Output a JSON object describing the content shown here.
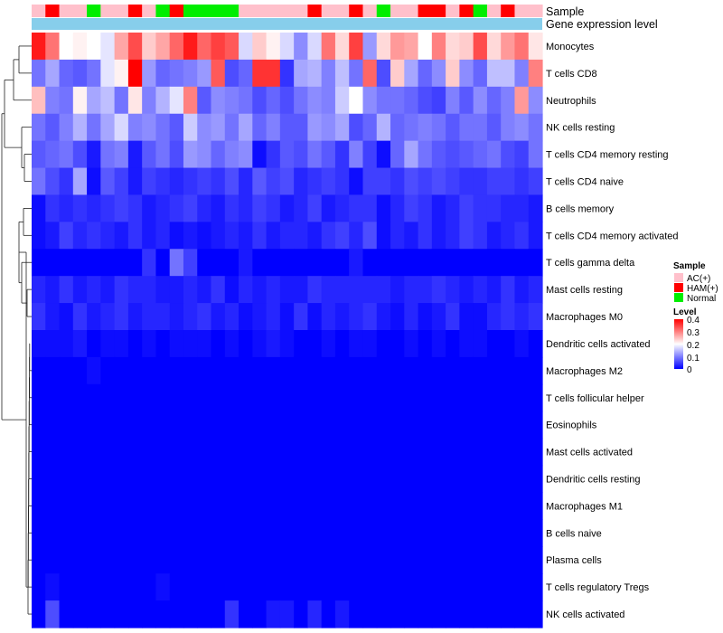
{
  "chart_data": {
    "type": "heatmap",
    "title": "",
    "annotation_rows": [
      "Sample",
      "Gene expression level"
    ],
    "rows": [
      "Monocytes",
      "T cells CD8",
      "Neutrophils",
      "NK cells resting",
      "T cells CD4 memory resting",
      "T cells CD4 naive",
      "B cells memory",
      "T cells CD4 memory activated",
      "T cells gamma delta",
      "Mast cells resting",
      "Macrophages M0",
      "Dendritic cells activated",
      "Macrophages M2",
      "T cells follicular helper",
      "Eosinophils",
      "Mast cells activated",
      "Dendritic cells resting",
      "Macrophages M1",
      "B cells naive",
      "Plasma cells",
      "T cells regulatory  Tregs",
      "NK cells activated"
    ],
    "sample_groups": [
      "AC",
      "HAM",
      "AC",
      "AC",
      "Normal",
      "AC",
      "AC",
      "HAM",
      "AC",
      "Normal",
      "HAM",
      "Normal",
      "Normal",
      "Normal",
      "Normal",
      "AC",
      "AC",
      "AC",
      "AC",
      "AC",
      "HAM",
      "AC",
      "AC",
      "HAM",
      "AC",
      "Normal",
      "AC",
      "AC",
      "HAM",
      "HAM",
      "AC",
      "HAM",
      "Normal",
      "AC",
      "HAM",
      "AC",
      "AC"
    ],
    "values": [
      [
        0.38,
        0.31,
        0.2,
        0.21,
        0.2,
        0.18,
        0.27,
        0.34,
        0.24,
        0.27,
        0.32,
        0.38,
        0.32,
        0.35,
        0.33,
        0.17,
        0.24,
        0.21,
        0.17,
        0.11,
        0.17,
        0.31,
        0.23,
        0.35,
        0.12,
        0.23,
        0.28,
        0.27,
        0.2,
        0.3,
        0.23,
        0.24,
        0.34,
        0.23,
        0.28,
        0.31,
        0.22
      ],
      [
        0.09,
        0.13,
        0.08,
        0.07,
        0.09,
        0.18,
        0.21,
        0.4,
        0.12,
        0.08,
        0.09,
        0.1,
        0.12,
        0.33,
        0.06,
        0.08,
        0.36,
        0.36,
        0.04,
        0.13,
        0.14,
        0.1,
        0.15,
        0.09,
        0.32,
        0.06,
        0.24,
        0.13,
        0.08,
        0.11,
        0.24,
        0.11,
        0.08,
        0.15,
        0.15,
        0.1,
        0.3
      ],
      [
        0.25,
        0.1,
        0.09,
        0.21,
        0.13,
        0.15,
        0.09,
        0.22,
        0.1,
        0.14,
        0.18,
        0.3,
        0.07,
        0.11,
        0.1,
        0.09,
        0.06,
        0.08,
        0.06,
        0.09,
        0.11,
        0.1,
        0.16,
        0.2,
        0.11,
        0.09,
        0.09,
        0.08,
        0.06,
        0.05,
        0.1,
        0.07,
        0.11,
        0.08,
        0.1,
        0.28,
        0.11
      ],
      [
        0.09,
        0.07,
        0.1,
        0.14,
        0.09,
        0.13,
        0.17,
        0.1,
        0.11,
        0.09,
        0.07,
        0.16,
        0.11,
        0.12,
        0.09,
        0.13,
        0.08,
        0.1,
        0.07,
        0.07,
        0.12,
        0.11,
        0.13,
        0.06,
        0.08,
        0.14,
        0.08,
        0.09,
        0.1,
        0.09,
        0.07,
        0.09,
        0.09,
        0.07,
        0.1,
        0.11,
        0.09
      ],
      [
        0.07,
        0.08,
        0.09,
        0.06,
        0.02,
        0.09,
        0.1,
        0.02,
        0.07,
        0.09,
        0.06,
        0.12,
        0.11,
        0.08,
        0.1,
        0.11,
        0.01,
        0.04,
        0.07,
        0.06,
        0.09,
        0.07,
        0.04,
        0.1,
        0.05,
        0.01,
        0.08,
        0.13,
        0.09,
        0.07,
        0.06,
        0.07,
        0.08,
        0.09,
        0.06,
        0.05,
        0.09
      ],
      [
        0.09,
        0.06,
        0.04,
        0.13,
        0.01,
        0.07,
        0.05,
        0.02,
        0.05,
        0.04,
        0.03,
        0.04,
        0.05,
        0.04,
        0.06,
        0.03,
        0.07,
        0.05,
        0.06,
        0.03,
        0.04,
        0.05,
        0.04,
        0.01,
        0.05,
        0.05,
        0.04,
        0.06,
        0.05,
        0.06,
        0.05,
        0.04,
        0.04,
        0.05,
        0.05,
        0.04,
        0.05
      ],
      [
        0.01,
        0.04,
        0.03,
        0.04,
        0.03,
        0.04,
        0.05,
        0.04,
        0.02,
        0.03,
        0.04,
        0.05,
        0.03,
        0.02,
        0.04,
        0.03,
        0.05,
        0.04,
        0.02,
        0.03,
        0.05,
        0.02,
        0.03,
        0.04,
        0.04,
        0.01,
        0.03,
        0.05,
        0.04,
        0.02,
        0.03,
        0.05,
        0.04,
        0.04,
        0.03,
        0.03,
        0.02
      ],
      [
        0.01,
        0.02,
        0.05,
        0.03,
        0.04,
        0.03,
        0.02,
        0.04,
        0.02,
        0.03,
        0.01,
        0.02,
        0.01,
        0.02,
        0.03,
        0.02,
        0.04,
        0.02,
        0.03,
        0.03,
        0.02,
        0.04,
        0.05,
        0.03,
        0.06,
        0.01,
        0.03,
        0.02,
        0.04,
        0.02,
        0.03,
        0.05,
        0.04,
        0.02,
        0.03,
        0.04,
        0.02
      ],
      [
        0.0,
        0.0,
        0.0,
        0.0,
        0.0,
        0.0,
        0.0,
        0.0,
        0.04,
        0.0,
        0.09,
        0.05,
        0.0,
        0.0,
        0.0,
        0.02,
        0.0,
        0.0,
        0.0,
        0.0,
        0.0,
        0.0,
        0.0,
        0.02,
        0.0,
        0.0,
        0.0,
        0.0,
        0.0,
        0.0,
        0.0,
        0.0,
        0.0,
        0.0,
        0.0,
        0.0,
        0.0
      ],
      [
        0.03,
        0.02,
        0.04,
        0.02,
        0.03,
        0.02,
        0.04,
        0.03,
        0.03,
        0.02,
        0.02,
        0.03,
        0.02,
        0.04,
        0.01,
        0.03,
        0.02,
        0.03,
        0.02,
        0.02,
        0.04,
        0.03,
        0.03,
        0.03,
        0.03,
        0.03,
        0.02,
        0.03,
        0.03,
        0.04,
        0.03,
        0.02,
        0.03,
        0.02,
        0.04,
        0.02,
        0.03
      ],
      [
        0.04,
        0.02,
        0.01,
        0.04,
        0.02,
        0.03,
        0.04,
        0.02,
        0.03,
        0.03,
        0.02,
        0.03,
        0.04,
        0.02,
        0.03,
        0.01,
        0.02,
        0.03,
        0.01,
        0.04,
        0.01,
        0.03,
        0.02,
        0.03,
        0.04,
        0.02,
        0.01,
        0.03,
        0.01,
        0.02,
        0.04,
        0.01,
        0.01,
        0.03,
        0.04,
        0.03,
        0.04
      ],
      [
        0.01,
        0.01,
        0.01,
        0.02,
        0.0,
        0.01,
        0.01,
        0.0,
        0.01,
        0.0,
        0.01,
        0.01,
        0.01,
        0.0,
        0.01,
        0.0,
        0.01,
        0.02,
        0.01,
        0.0,
        0.0,
        0.01,
        0.0,
        0.01,
        0.01,
        0.0,
        0.0,
        0.01,
        0.0,
        0.01,
        0.0,
        0.01,
        0.01,
        0.0,
        0.0,
        0.01,
        0.0
      ],
      [
        0.0,
        0.0,
        0.0,
        0.0,
        0.01,
        0.0,
        0.0,
        0.0,
        0.0,
        0.0,
        0.0,
        0.0,
        0.0,
        0.0,
        0.0,
        0.0,
        0.0,
        0.0,
        0.0,
        0.0,
        0.0,
        0.0,
        0.0,
        0.0,
        0.0,
        0.0,
        0.0,
        0.0,
        0.0,
        0.0,
        0.0,
        0.0,
        0.0,
        0.0,
        0.0,
        0.0,
        0.0
      ],
      [
        0.0,
        0.0,
        0.0,
        0.0,
        0.0,
        0.0,
        0.0,
        0.0,
        0.0,
        0.0,
        0.0,
        0.0,
        0.0,
        0.0,
        0.0,
        0.0,
        0.0,
        0.0,
        0.0,
        0.0,
        0.0,
        0.0,
        0.0,
        0.0,
        0.0,
        0.0,
        0.0,
        0.0,
        0.0,
        0.0,
        0.0,
        0.0,
        0.0,
        0.0,
        0.0,
        0.0,
        0.0
      ],
      [
        0.0,
        0.0,
        0.0,
        0.0,
        0.0,
        0.0,
        0.0,
        0.0,
        0.0,
        0.0,
        0.0,
        0.0,
        0.0,
        0.0,
        0.0,
        0.0,
        0.0,
        0.0,
        0.0,
        0.0,
        0.0,
        0.0,
        0.0,
        0.0,
        0.0,
        0.0,
        0.0,
        0.0,
        0.0,
        0.0,
        0.0,
        0.0,
        0.0,
        0.0,
        0.0,
        0.0,
        0.0
      ],
      [
        0.0,
        0.0,
        0.0,
        0.0,
        0.0,
        0.0,
        0.0,
        0.0,
        0.0,
        0.0,
        0.0,
        0.0,
        0.0,
        0.0,
        0.0,
        0.0,
        0.0,
        0.0,
        0.0,
        0.0,
        0.0,
        0.0,
        0.0,
        0.0,
        0.0,
        0.0,
        0.0,
        0.0,
        0.0,
        0.0,
        0.0,
        0.0,
        0.0,
        0.0,
        0.0,
        0.0,
        0.0
      ],
      [
        0.0,
        0.0,
        0.0,
        0.0,
        0.0,
        0.0,
        0.0,
        0.0,
        0.0,
        0.0,
        0.0,
        0.0,
        0.0,
        0.0,
        0.0,
        0.0,
        0.0,
        0.0,
        0.0,
        0.0,
        0.0,
        0.0,
        0.0,
        0.0,
        0.0,
        0.0,
        0.0,
        0.0,
        0.0,
        0.0,
        0.0,
        0.0,
        0.0,
        0.0,
        0.0,
        0.0,
        0.0
      ],
      [
        0.0,
        0.0,
        0.0,
        0.0,
        0.0,
        0.0,
        0.0,
        0.0,
        0.0,
        0.0,
        0.0,
        0.0,
        0.0,
        0.0,
        0.0,
        0.0,
        0.0,
        0.0,
        0.0,
        0.0,
        0.0,
        0.0,
        0.0,
        0.0,
        0.0,
        0.0,
        0.0,
        0.0,
        0.0,
        0.0,
        0.0,
        0.0,
        0.0,
        0.0,
        0.0,
        0.0,
        0.0
      ],
      [
        0.0,
        0.0,
        0.0,
        0.0,
        0.0,
        0.0,
        0.0,
        0.0,
        0.0,
        0.0,
        0.0,
        0.0,
        0.0,
        0.0,
        0.0,
        0.0,
        0.0,
        0.0,
        0.0,
        0.0,
        0.0,
        0.0,
        0.0,
        0.0,
        0.0,
        0.0,
        0.0,
        0.0,
        0.0,
        0.0,
        0.0,
        0.0,
        0.0,
        0.0,
        0.0,
        0.0,
        0.0
      ],
      [
        0.0,
        0.0,
        0.0,
        0.0,
        0.0,
        0.0,
        0.0,
        0.0,
        0.0,
        0.0,
        0.0,
        0.0,
        0.0,
        0.0,
        0.0,
        0.0,
        0.0,
        0.0,
        0.0,
        0.0,
        0.0,
        0.0,
        0.0,
        0.0,
        0.0,
        0.0,
        0.0,
        0.0,
        0.0,
        0.0,
        0.0,
        0.0,
        0.0,
        0.0,
        0.0,
        0.0,
        0.0
      ],
      [
        0.0,
        0.01,
        0.0,
        0.0,
        0.0,
        0.0,
        0.0,
        0.0,
        0.0,
        0.01,
        0.0,
        0.0,
        0.0,
        0.0,
        0.0,
        0.0,
        0.0,
        0.0,
        0.0,
        0.0,
        0.0,
        0.0,
        0.0,
        0.0,
        0.0,
        0.0,
        0.0,
        0.0,
        0.0,
        0.0,
        0.0,
        0.0,
        0.0,
        0.0,
        0.0,
        0.0,
        0.0
      ],
      [
        0.0,
        0.06,
        0.0,
        0.0,
        0.0,
        0.0,
        0.0,
        0.0,
        0.0,
        0.0,
        0.0,
        0.0,
        0.0,
        0.0,
        0.04,
        0.0,
        0.0,
        0.02,
        0.02,
        0.0,
        0.03,
        0.0,
        0.02,
        0.0,
        0.0,
        0.0,
        0.0,
        0.0,
        0.0,
        0.0,
        0.0,
        0.0,
        0.0,
        0.0,
        0.0,
        0.0,
        0.0
      ]
    ],
    "legend": {
      "sample_title": "Sample",
      "sample_entries": [
        {
          "label": "AC(+)",
          "color": "#ffc0cb"
        },
        {
          "label": "HAM(+)",
          "color": "#ff0000"
        },
        {
          "label": "Normal",
          "color": "#00ee00"
        }
      ],
      "level_title": "Level",
      "level_ticks": [
        "0.4",
        "0.3",
        "0.2",
        "0.1",
        "0"
      ],
      "level_range": [
        0,
        0.4
      ]
    },
    "colors": {
      "low": "#0000ff",
      "mid": "#ffffff",
      "high": "#ff0000",
      "gene_expression_bar": "#87ceeb",
      "AC": "#ffc0cb",
      "HAM": "#ff0000",
      "Normal": "#00ee00"
    }
  }
}
